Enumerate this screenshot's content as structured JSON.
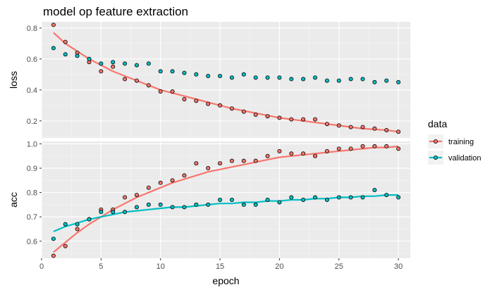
{
  "chart_data": {
    "type": "scatter",
    "title": "model op feature extraction",
    "xlabel": "epoch",
    "x": [
      1,
      2,
      3,
      4,
      5,
      6,
      7,
      8,
      9,
      10,
      11,
      12,
      13,
      14,
      15,
      16,
      17,
      18,
      19,
      20,
      21,
      22,
      23,
      24,
      25,
      26,
      27,
      28,
      29,
      30
    ],
    "xlim": [
      0,
      31
    ],
    "xticks": [
      0,
      5,
      10,
      15,
      20,
      25,
      30
    ],
    "legend_title": "data",
    "legend_position": "right",
    "grid": true,
    "panels": [
      {
        "name": "loss",
        "ylabel": "loss",
        "ylim": [
          0.09,
          0.84
        ],
        "yticks": [
          0.2,
          0.4,
          0.6,
          0.8
        ],
        "series": [
          {
            "name": "training",
            "color": "#F8766D",
            "values": [
              0.82,
              0.71,
              0.64,
              0.58,
              0.52,
              0.55,
              0.47,
              0.46,
              0.43,
              0.39,
              0.39,
              0.34,
              0.33,
              0.31,
              0.3,
              0.28,
              0.26,
              0.24,
              0.23,
              0.22,
              0.21,
              0.21,
              0.21,
              0.18,
              0.17,
              0.16,
              0.16,
              0.15,
              0.14,
              0.13
            ],
            "fit": [
              0.77,
              0.7,
              0.65,
              0.6,
              0.56,
              0.52,
              0.49,
              0.46,
              0.43,
              0.4,
              0.38,
              0.36,
              0.34,
              0.32,
              0.3,
              0.28,
              0.265,
              0.25,
              0.235,
              0.22,
              0.21,
              0.2,
              0.19,
              0.18,
              0.17,
              0.16,
              0.15,
              0.145,
              0.14,
              0.13
            ]
          },
          {
            "name": "validation",
            "color": "#00BFC4",
            "values": [
              0.67,
              0.63,
              0.62,
              0.6,
              0.57,
              0.58,
              0.57,
              0.56,
              0.57,
              0.52,
              0.52,
              0.51,
              0.5,
              0.49,
              0.49,
              0.48,
              0.5,
              0.48,
              0.48,
              0.48,
              0.47,
              0.47,
              0.48,
              0.46,
              0.46,
              0.47,
              0.47,
              0.45,
              0.46,
              0.45
            ]
          }
        ]
      },
      {
        "name": "acc",
        "ylabel": "acc",
        "ylim": [
          0.53,
          1.01
        ],
        "yticks": [
          0.6,
          0.7,
          0.8,
          0.9,
          1.0
        ],
        "series": [
          {
            "name": "training",
            "color": "#F8766D",
            "values": [
              0.54,
              0.58,
              0.65,
              0.69,
              0.73,
              0.73,
              0.78,
              0.79,
              0.82,
              0.84,
              0.85,
              0.87,
              0.92,
              0.9,
              0.92,
              0.93,
              0.93,
              0.93,
              0.95,
              0.97,
              0.96,
              0.96,
              0.95,
              0.97,
              0.98,
              0.98,
              0.99,
              0.99,
              0.99,
              0.98
            ],
            "fit": [
              0.555,
              0.595,
              0.635,
              0.67,
              0.7,
              0.73,
              0.755,
              0.78,
              0.8,
              0.82,
              0.84,
              0.855,
              0.87,
              0.885,
              0.895,
              0.905,
              0.915,
              0.925,
              0.935,
              0.945,
              0.95,
              0.955,
              0.96,
              0.965,
              0.97,
              0.975,
              0.98,
              0.985,
              0.985,
              0.99
            ]
          },
          {
            "name": "validation",
            "color": "#00BFC4",
            "values": [
              0.61,
              0.67,
              0.67,
              0.69,
              0.72,
              0.72,
              0.72,
              0.74,
              0.75,
              0.75,
              0.74,
              0.74,
              0.75,
              0.75,
              0.77,
              0.77,
              0.75,
              0.75,
              0.77,
              0.76,
              0.78,
              0.77,
              0.78,
              0.77,
              0.78,
              0.78,
              0.78,
              0.81,
              0.79,
              0.78
            ],
            "fit": [
              0.64,
              0.66,
              0.675,
              0.69,
              0.7,
              0.71,
              0.72,
              0.725,
              0.73,
              0.735,
              0.74,
              0.74,
              0.745,
              0.75,
              0.755,
              0.755,
              0.76,
              0.76,
              0.765,
              0.765,
              0.77,
              0.77,
              0.775,
              0.775,
              0.78,
              0.78,
              0.785,
              0.785,
              0.79,
              0.79
            ]
          }
        ]
      }
    ]
  }
}
